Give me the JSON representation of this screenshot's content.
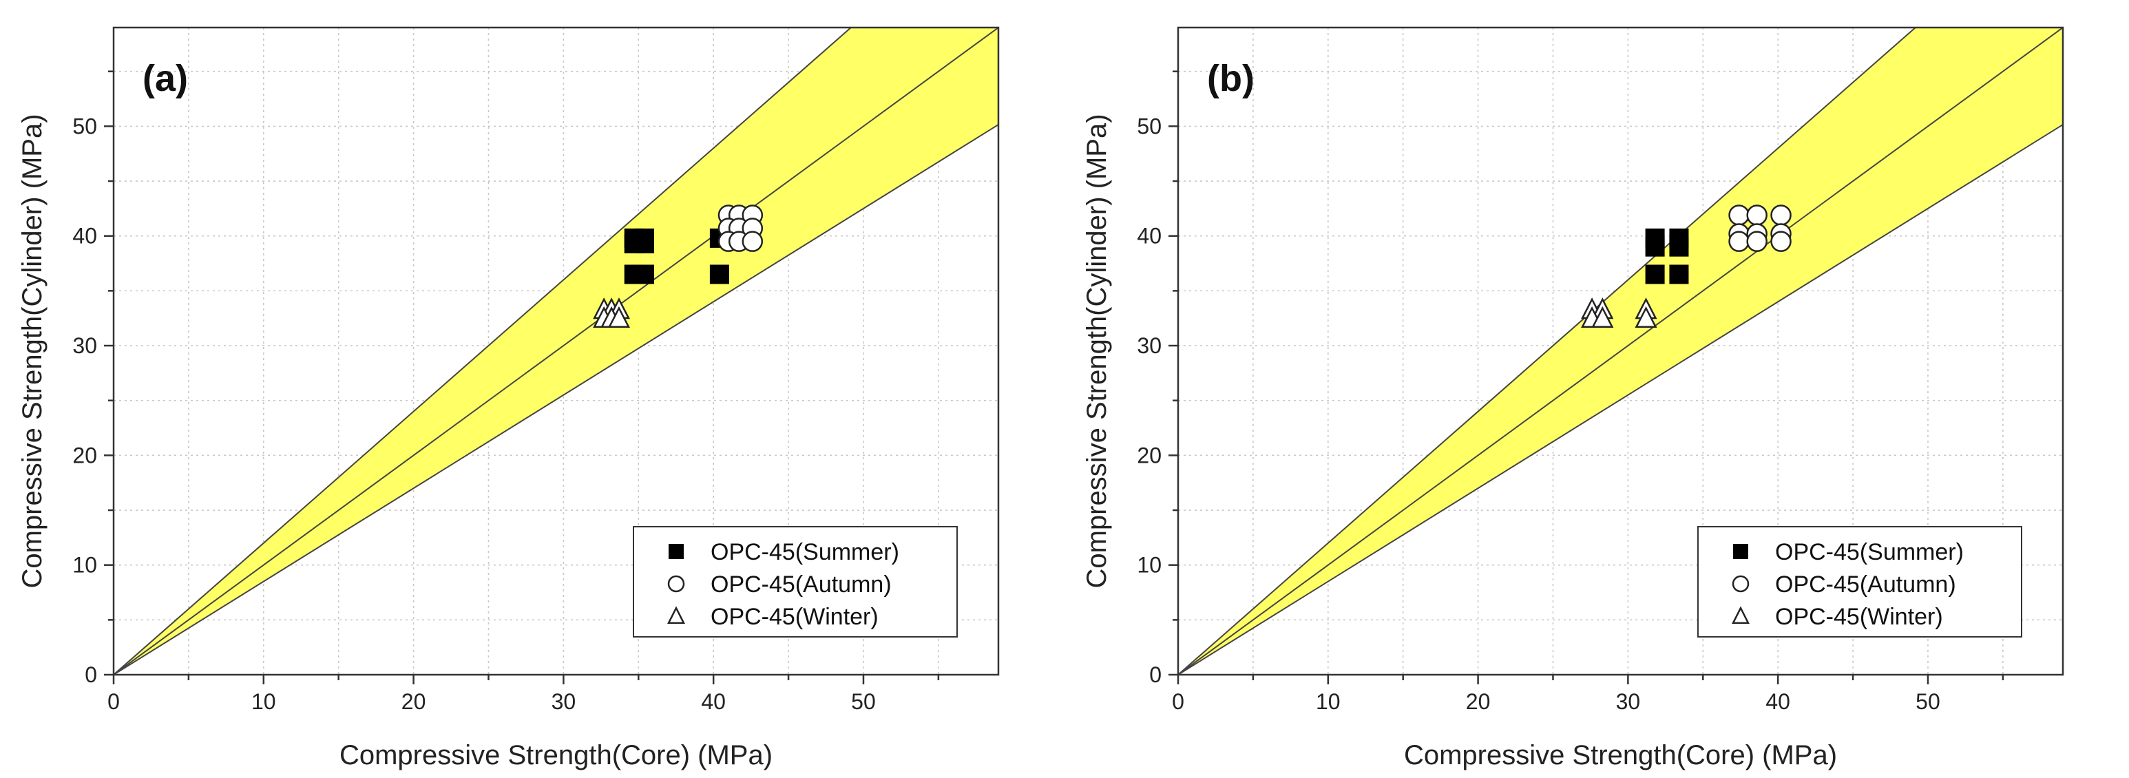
{
  "colors": {
    "band": "#ffff66",
    "frame": "#333333",
    "grid": "#c8c8c8",
    "marker": "#000000"
  },
  "chart_data": [
    {
      "type": "scatter",
      "panel_label": "(a)",
      "xlabel": "Compressive Strength(Core) (MPa)",
      "ylabel": "Compressive Strength(Cylinder) (MPa)",
      "xlim": [
        0,
        59
      ],
      "ylim": [
        0,
        59
      ],
      "xticks": [
        0,
        10,
        20,
        30,
        40,
        50
      ],
      "yticks": [
        0,
        10,
        20,
        30,
        40,
        50
      ],
      "reference_lines": [
        {
          "name": "upper bound",
          "slope": 1.2
        },
        {
          "name": "line of equality",
          "slope": 1.0
        },
        {
          "name": "lower bound",
          "slope": 0.85
        }
      ],
      "series": [
        {
          "name": "OPC-45(Summer)",
          "marker": "filled-square",
          "points": [
            [
              34.7,
              39.8
            ],
            [
              35.4,
              39.8
            ],
            [
              34.7,
              39.3
            ],
            [
              35.4,
              39.3
            ],
            [
              34.7,
              36.5
            ],
            [
              35.4,
              36.5
            ],
            [
              40.4,
              39.8
            ],
            [
              40.4,
              36.5
            ]
          ]
        },
        {
          "name": "OPC-45(Autumn)",
          "marker": "open-circle",
          "points": [
            [
              41.0,
              41.9
            ],
            [
              41.7,
              41.9
            ],
            [
              42.6,
              41.9
            ],
            [
              41.0,
              40.7
            ],
            [
              41.7,
              40.7
            ],
            [
              42.6,
              40.7
            ],
            [
              41.0,
              39.5
            ],
            [
              41.7,
              39.5
            ],
            [
              42.6,
              39.5
            ]
          ]
        },
        {
          "name": "OPC-45(Winter)",
          "marker": "open-triangle",
          "points": [
            [
              32.7,
              33.3
            ],
            [
              33.2,
              33.3
            ],
            [
              33.7,
              33.3
            ],
            [
              32.7,
              32.5
            ],
            [
              33.2,
              32.5
            ],
            [
              33.7,
              32.5
            ]
          ]
        }
      ]
    },
    {
      "type": "scatter",
      "panel_label": "(b)",
      "xlabel": "Compressive Strength(Core) (MPa)",
      "ylabel": "Compressive Strength(Cylinder) (MPa)",
      "xlim": [
        0,
        59
      ],
      "ylim": [
        0,
        59
      ],
      "xticks": [
        0,
        10,
        20,
        30,
        40,
        50
      ],
      "yticks": [
        0,
        10,
        20,
        30,
        40,
        50
      ],
      "reference_lines": [
        {
          "name": "upper bound",
          "slope": 1.2
        },
        {
          "name": "line of equality",
          "slope": 1.0
        },
        {
          "name": "lower bound",
          "slope": 0.85
        }
      ],
      "series": [
        {
          "name": "OPC-45(Summer)",
          "marker": "filled-square",
          "points": [
            [
              31.8,
              39.8
            ],
            [
              31.8,
              39.0
            ],
            [
              31.8,
              36.5
            ],
            [
              33.4,
              39.8
            ],
            [
              33.4,
              39.0
            ],
            [
              33.4,
              36.5
            ]
          ]
        },
        {
          "name": "OPC-45(Autumn)",
          "marker": "open-circle",
          "points": [
            [
              37.4,
              41.9
            ],
            [
              38.6,
              41.9
            ],
            [
              40.2,
              41.9
            ],
            [
              37.4,
              40.2
            ],
            [
              38.6,
              40.2
            ],
            [
              40.2,
              40.2
            ],
            [
              37.4,
              39.5
            ],
            [
              38.6,
              39.5
            ],
            [
              40.2,
              39.5
            ]
          ]
        },
        {
          "name": "OPC-45(Winter)",
          "marker": "open-triangle",
          "points": [
            [
              27.6,
              33.3
            ],
            [
              28.3,
              33.3
            ],
            [
              27.6,
              32.5
            ],
            [
              28.3,
              32.5
            ],
            [
              31.2,
              33.3
            ],
            [
              31.2,
              32.5
            ]
          ]
        }
      ]
    }
  ]
}
